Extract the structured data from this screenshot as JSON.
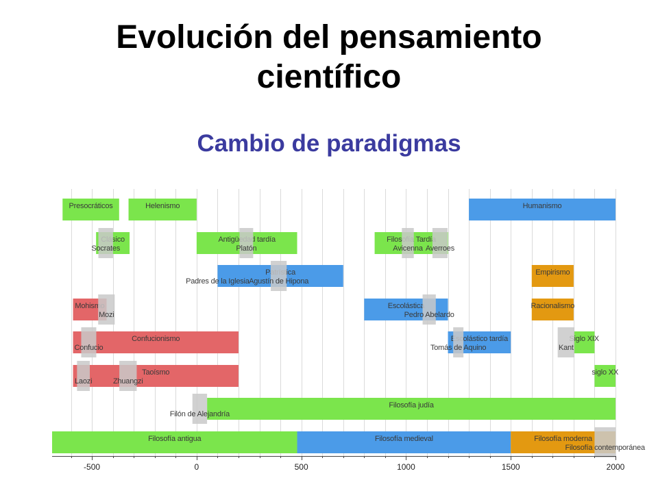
{
  "slide": {
    "title_line1": "Evolución del pensamiento",
    "title_line2": "científico",
    "subtitle": "Cambio de paradigmas"
  },
  "chart_data": {
    "type": "timeline",
    "xlim": [
      -690,
      2000
    ],
    "x_ticks": [
      -500,
      0,
      500,
      1000,
      1500,
      2000
    ],
    "x_tick_labels": [
      "-500",
      "0",
      "500",
      "1000",
      "1500",
      "2000"
    ],
    "grid_step": 100,
    "colors": {
      "green": "#7be54c",
      "blue": "#4b9be8",
      "red": "#e36668",
      "orange": "#e39911",
      "gray": "#c9c9c9"
    },
    "periods": [
      {
        "label": "Presocráticos",
        "start": -640,
        "end": -370,
        "row": 0,
        "color": "green"
      },
      {
        "label": "Helenismo",
        "start": -325,
        "end": 0,
        "row": 0,
        "color": "green"
      },
      {
        "label": "Humanismo",
        "start": 1300,
        "end": 2000,
        "row": 0,
        "color": "blue"
      },
      {
        "label": "Clásico",
        "start": -480,
        "end": -320,
        "row": 1,
        "color": "green"
      },
      {
        "label": "Antigüedad tardía",
        "start": 0,
        "end": 480,
        "row": 1,
        "color": "green"
      },
      {
        "label": "Filosofía Tardía",
        "start": 850,
        "end": 1200,
        "row": 1,
        "color": "green"
      },
      {
        "label": "Patrística",
        "start": 100,
        "end": 700,
        "row": 2,
        "color": "blue"
      },
      {
        "label": "Empirismo",
        "start": 1600,
        "end": 1800,
        "row": 2,
        "color": "orange"
      },
      {
        "label": "Mohismo",
        "start": -590,
        "end": -430,
        "row": 3,
        "color": "red"
      },
      {
        "label": "Escolástica",
        "start": 800,
        "end": 1200,
        "row": 3,
        "color": "blue"
      },
      {
        "label": "Racionalismo",
        "start": 1600,
        "end": 1800,
        "row": 3,
        "color": "orange"
      },
      {
        "label": "Confucionismo",
        "start": -590,
        "end": 200,
        "row": 4,
        "color": "red"
      },
      {
        "label": "Escolástico tardía",
        "start": 1200,
        "end": 1500,
        "row": 4,
        "color": "blue"
      },
      {
        "label": "Siglo XIX",
        "start": 1800,
        "end": 1900,
        "row": 4,
        "color": "green"
      },
      {
        "label": "Taoísmo",
        "start": -590,
        "end": 200,
        "row": 5,
        "color": "red"
      },
      {
        "label": "siglo XX",
        "start": 1900,
        "end": 2000,
        "row": 5,
        "color": "green"
      },
      {
        "label": "Filosofía judía",
        "start": 50,
        "end": 2000,
        "row": 6,
        "color": "green"
      },
      {
        "label": "Filosofía antigua",
        "start": -690,
        "end": 480,
        "row": 7,
        "color": "green"
      },
      {
        "label": "Filosofía medieval",
        "start": 480,
        "end": 1500,
        "row": 7,
        "color": "blue"
      },
      {
        "label": "Filosofía moderna",
        "start": 1500,
        "end": 2000,
        "row": 7,
        "color": "orange"
      }
    ],
    "people": [
      {
        "label": "Socrates",
        "start": -469,
        "end": -399,
        "row": 1
      },
      {
        "label": "Platón",
        "start": 205,
        "end": 270,
        "row": 1
      },
      {
        "label": "Avicenna",
        "start": 980,
        "end": 1037,
        "row": 1
      },
      {
        "label": "Averroes",
        "start": 1126,
        "end": 1198,
        "row": 1
      },
      {
        "label": "Padres de la Iglesia",
        "start": 100,
        "end": 100,
        "row": 2
      },
      {
        "label": "Agustín de Hipona",
        "start": 354,
        "end": 430,
        "row": 2
      },
      {
        "label": "Mozi",
        "start": -470,
        "end": -391,
        "row": 3
      },
      {
        "label": "Pedro Abelardo",
        "start": 1079,
        "end": 1142,
        "row": 3
      },
      {
        "label": "Confucio",
        "start": -551,
        "end": -479,
        "row": 4
      },
      {
        "label": "Tomás de Aquino",
        "start": 1225,
        "end": 1274,
        "row": 4
      },
      {
        "label": "Kant",
        "start": 1724,
        "end": 1804,
        "row": 4
      },
      {
        "label": "Laozi",
        "start": -571,
        "end": -510,
        "row": 5
      },
      {
        "label": "Zhuangzi",
        "start": -369,
        "end": -286,
        "row": 5
      },
      {
        "label": "Filón de Alejandría",
        "start": -20,
        "end": 50,
        "row": 6
      },
      {
        "label": "Filosofía contemporánea",
        "start": 1900,
        "end": 2000,
        "row": 7
      }
    ]
  }
}
